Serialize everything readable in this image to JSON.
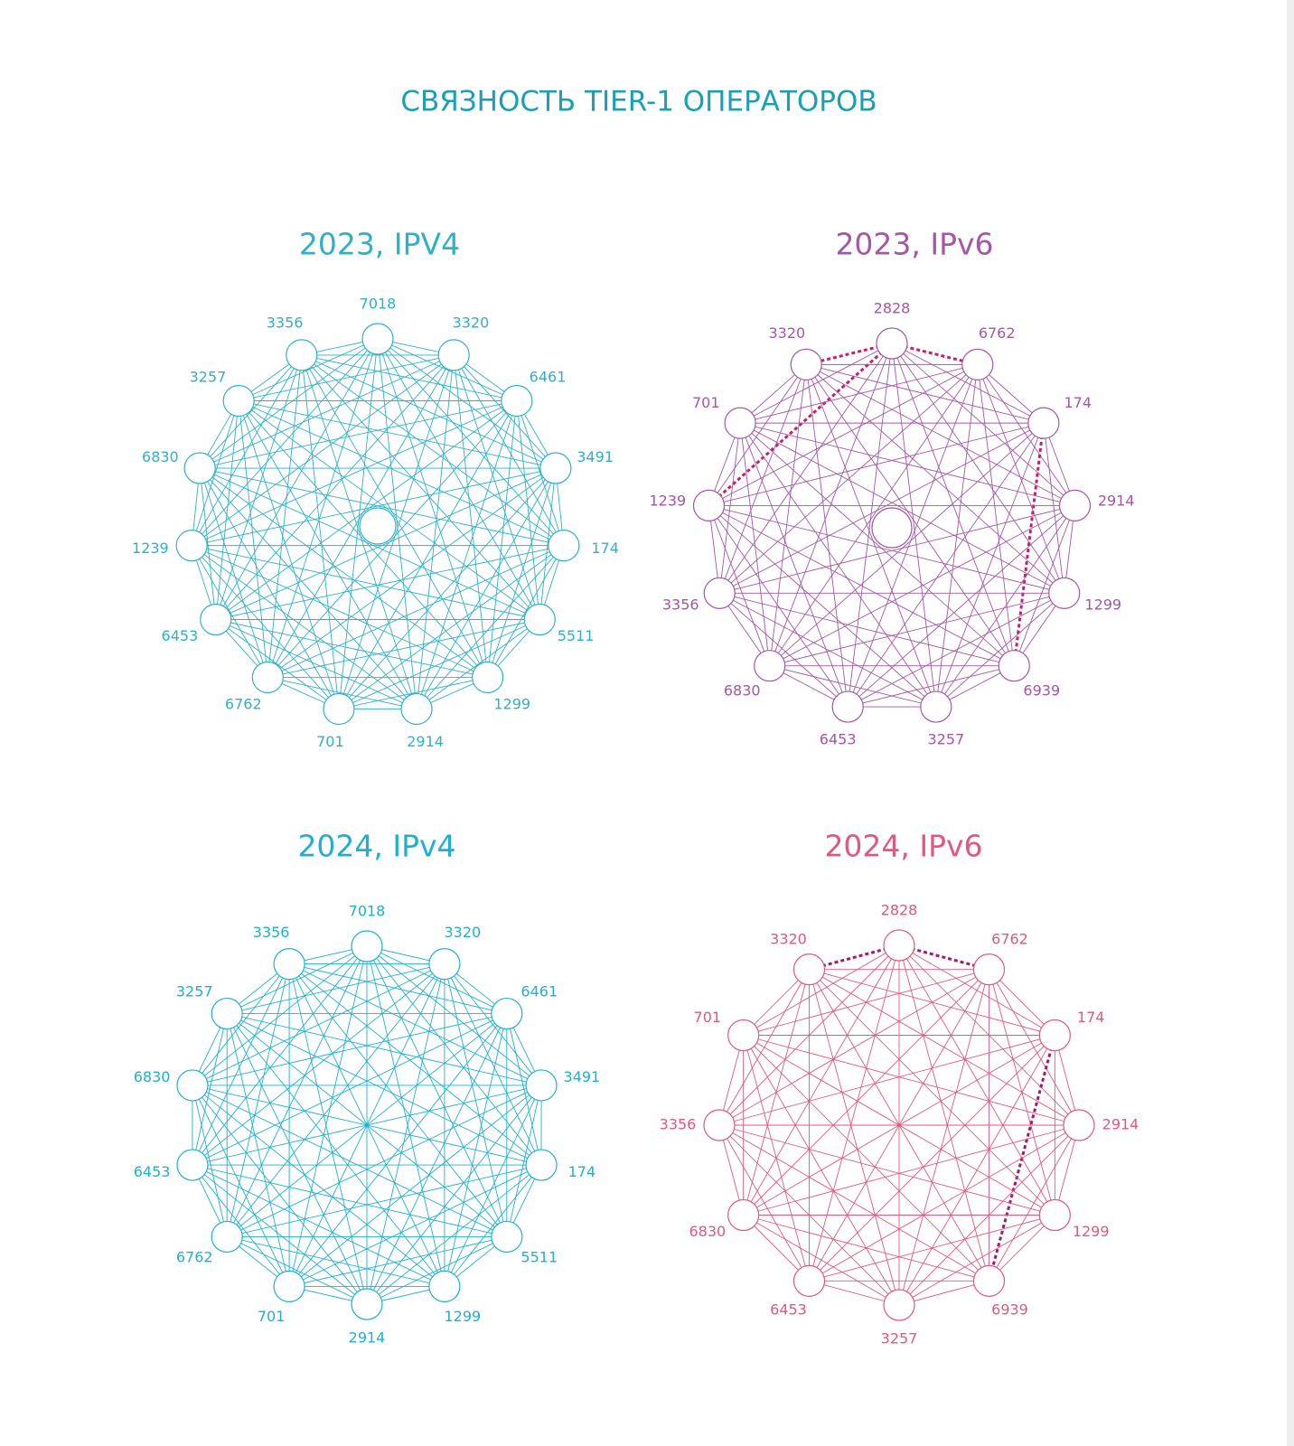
{
  "title": "СВЯЗНОСТЬ TIER-1 ОПЕРАТОРОВ",
  "graphs": [
    {
      "title": "2023, IPV4",
      "color": "#2fb0c8",
      "nodes": [
        "7018",
        "3320",
        "6461",
        "3491",
        "174",
        "5511",
        "1299",
        "2914",
        "701",
        "6762",
        "6453",
        "1239",
        "6830",
        "3257",
        "3356"
      ],
      "dashed_links": [],
      "dashed_color": "#2fb0c8"
    },
    {
      "title": "2023, IPv6",
      "color": "#a457a4",
      "nodes": [
        "2828",
        "6762",
        "174",
        "2914",
        "1299",
        "6939",
        "3257",
        "6453",
        "6830",
        "3356",
        "1239",
        "701",
        "3320"
      ],
      "dashed_links": [
        [
          12,
          0
        ],
        [
          0,
          1
        ],
        [
          0,
          10
        ],
        [
          2,
          5
        ]
      ],
      "dashed_color": "#c81e6e"
    },
    {
      "title": "2024, IPv4",
      "color": "#1fb0d0",
      "nodes": [
        "7018",
        "3320",
        "6461",
        "3491",
        "174",
        "5511",
        "1299",
        "2914",
        "701",
        "6762",
        "6453",
        "6830",
        "3257",
        "3356"
      ],
      "dashed_links": [],
      "dashed_color": "#1fb0d0"
    },
    {
      "title": "2024, IPv6",
      "color": "#e0587e",
      "nodes": [
        "2828",
        "6762",
        "174",
        "2914",
        "1299",
        "6939",
        "3257",
        "6453",
        "6830",
        "3356",
        "701",
        "3320"
      ],
      "dashed_links": [
        [
          11,
          0
        ],
        [
          0,
          1
        ],
        [
          2,
          5
        ]
      ],
      "dashed_color": "#a8186a"
    }
  ]
}
